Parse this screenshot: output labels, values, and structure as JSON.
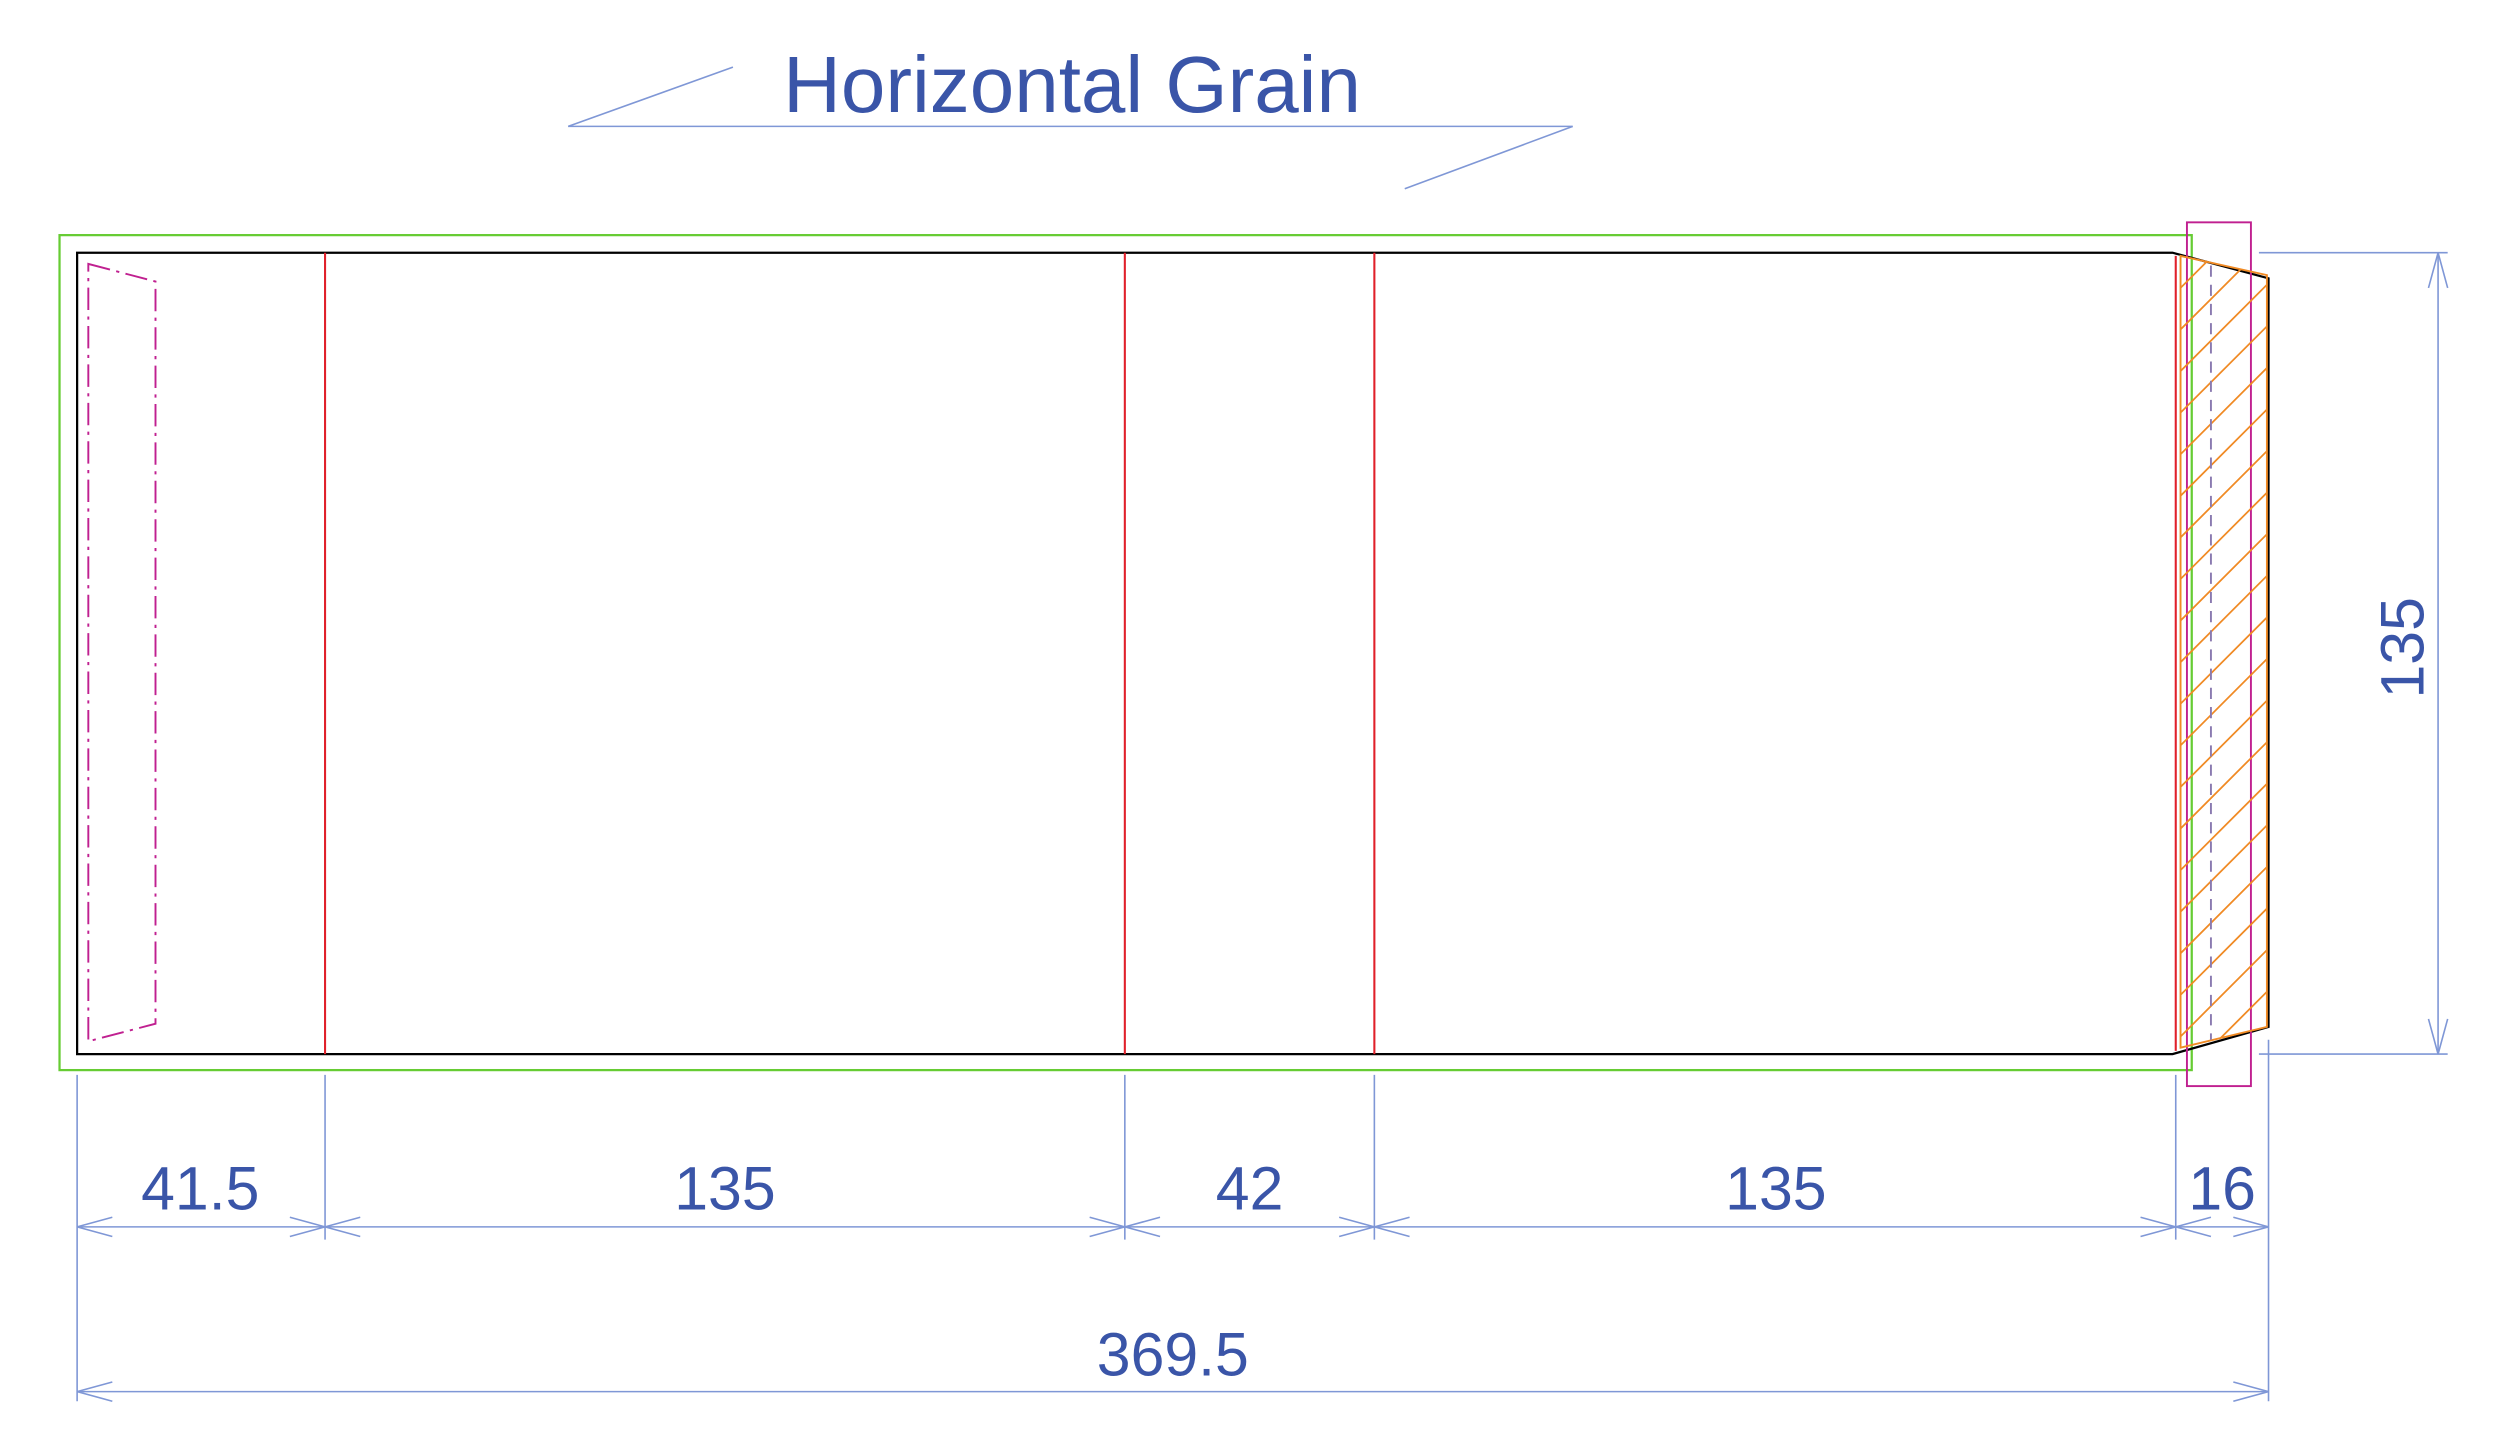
{
  "title": "Horizontal Grain",
  "dimensions": {
    "panels": [
      "41.5",
      "135",
      "42",
      "135",
      "16"
    ],
    "total_width": "369.5",
    "height": "135"
  },
  "colors": {
    "dimension": "#3a55a8",
    "dimension_line": "#7f97d6",
    "bleed": "#66cc33",
    "fold": "#e0202a",
    "outline": "#000000",
    "tuck_outline": "#c02090",
    "glue_hatch": "#f08a24"
  }
}
